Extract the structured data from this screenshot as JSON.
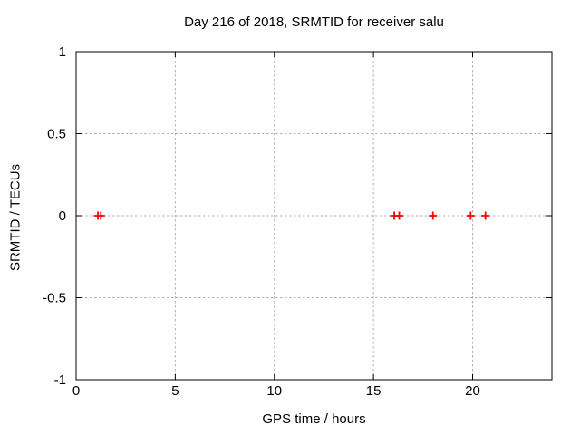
{
  "chart_data": {
    "type": "scatter",
    "title": "Day 216 of 2018, SRMTID for receiver salu",
    "xlabel": "GPS time / hours",
    "ylabel": "SRMTID / TECUs",
    "xlim": [
      0,
      24
    ],
    "ylim": [
      -1,
      1
    ],
    "xticks": [
      0,
      5,
      10,
      15,
      20
    ],
    "xtick_labels": [
      "0",
      "5",
      "10",
      "15",
      "20"
    ],
    "yticks": [
      1,
      0.5,
      0,
      -0.5,
      -1
    ],
    "ytick_labels": [
      "1",
      "0.5",
      "0",
      "-0.5",
      "-1"
    ],
    "grid": true,
    "legend": "none",
    "marker": "plus",
    "marker_color": "#ff0000",
    "grid_color": "#b0b0b0",
    "axis_color": "#000000",
    "background": "#ffffff",
    "series": [
      {
        "name": "SRMTID",
        "x": [
          1.1,
          1.25,
          16.05,
          16.3,
          18.0,
          19.9,
          20.65
        ],
        "y": [
          0,
          0,
          0,
          0,
          0,
          0,
          0
        ]
      }
    ]
  }
}
